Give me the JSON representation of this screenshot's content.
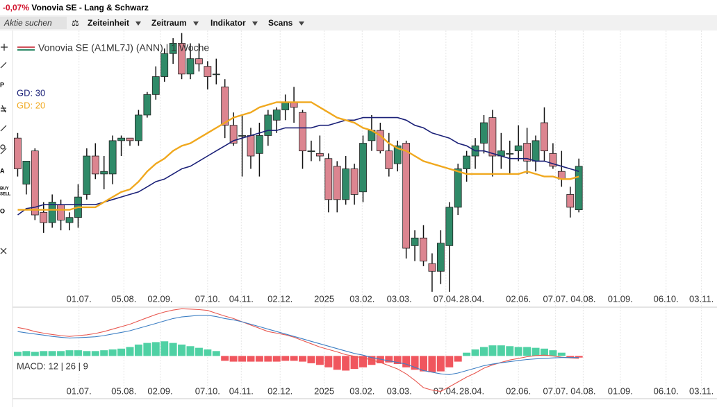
{
  "header": {
    "change": "-0,07%",
    "title": "Vonovia SE - Lang & Schwarz"
  },
  "toolbar": {
    "search": "Aktie suchen",
    "items": [
      "Zeiteinheit",
      "Zeitraum",
      "Indikator",
      "Scans"
    ]
  },
  "tools": {
    "p": "P",
    "a": "A",
    "buy": "BUY",
    "sell": "SELL",
    "o": "O"
  },
  "chart_data": [
    {
      "type": "candlestick",
      "title": "Vonovia SE (A1ML7J) (ANN) | 1 Woche",
      "up_color": "#2f8a68",
      "down_color": "#dc8590",
      "xlim": [
        -0.6,
        81
      ],
      "ylim": [
        22.9,
        33.7
      ],
      "grid": true,
      "xticks": [
        {
          "value": 7.1,
          "label": "01.07."
        },
        {
          "value": 12.3,
          "label": "05.08."
        },
        {
          "value": 16.5,
          "label": "02.09."
        },
        {
          "value": 22,
          "label": "07.10."
        },
        {
          "value": 25.9,
          "label": "04.11."
        },
        {
          "value": 30.4,
          "label": "02.12."
        },
        {
          "value": 35.5,
          "label": "2025"
        },
        {
          "value": 39.9,
          "label": "03.02."
        },
        {
          "value": 44.2,
          "label": "03.03."
        },
        {
          "value": 49.6,
          "label": "07.04."
        },
        {
          "value": 52.6,
          "label": "28.04."
        },
        {
          "value": 58,
          "label": "02.06."
        },
        {
          "value": 62.3,
          "label": "07.07."
        },
        {
          "value": 65.5,
          "label": "04.08."
        },
        {
          "value": 69.8,
          "label": "01.09."
        },
        {
          "value": 75.1,
          "label": "06.10."
        },
        {
          "value": 79.2,
          "label": "03.11."
        }
      ],
      "open": [
        29.5,
        27.7,
        29.0,
        26.6,
        26.2,
        26.9,
        26.2,
        26.4,
        27.3,
        28.8,
        28.1,
        28.1,
        29.4,
        29.5,
        29.4,
        30.4,
        31.2,
        31.9,
        32.8,
        33.2,
        32.0,
        32.6,
        32.3,
        32.0,
        31.5,
        30.0,
        29.6,
        29.6,
        28.9,
        29.6,
        30.2,
        30.6,
        30.9,
        30.5,
        29.0,
        28.9,
        28.7,
        28.4,
        27.1,
        28.3,
        27.4,
        29.4,
        29.8,
        29.0,
        28.5,
        29.3,
        25.3,
        25.6,
        24.6,
        24.3,
        25.3,
        26.8,
        28.3,
        28.8,
        29.3,
        30.3,
        28.8,
        28.9,
        29.0,
        29.3,
        28.6,
        30.1,
        28.9,
        28.2,
        27.3,
        26.7
      ],
      "high": [
        29.7,
        28.6,
        29.1,
        27.0,
        27.3,
        27.1,
        26.6,
        27.7,
        29.1,
        29.3,
        28.8,
        29.6,
        29.6,
        29.5,
        30.6,
        31.3,
        32.3,
        33.0,
        33.4,
        33.6,
        33.2,
        33.2,
        32.5,
        32.6,
        31.8,
        30.5,
        30.4,
        29.9,
        30.1,
        30.6,
        30.7,
        31.2,
        31.5,
        30.6,
        29.4,
        29.6,
        28.9,
        28.6,
        28.8,
        28.5,
        29.6,
        30.4,
        30.1,
        29.7,
        29.4,
        29.4,
        25.9,
        26.1,
        25.0,
        25.9,
        27.0,
        28.5,
        29.0,
        29.5,
        30.4,
        30.6,
        29.7,
        29.4,
        30.0,
        29.9,
        29.6,
        30.7,
        29.3,
        29.0,
        27.6,
        28.7
      ],
      "low": [
        28.0,
        27.3,
        26.3,
        25.8,
        26.0,
        25.9,
        25.9,
        26.0,
        27.1,
        27.9,
        27.5,
        27.7,
        28.8,
        29.2,
        29.2,
        30.3,
        31.0,
        31.7,
        32.4,
        31.8,
        31.8,
        32.1,
        31.4,
        31.6,
        29.5,
        29.2,
        28.0,
        28.3,
        28.0,
        29.2,
        29.7,
        30.2,
        30.1,
        28.3,
        28.6,
        28.6,
        26.6,
        26.6,
        26.9,
        26.9,
        27.0,
        29.0,
        28.9,
        28.0,
        28.2,
        24.8,
        24.7,
        24.5,
        23.5,
        23.8,
        23.5,
        26.5,
        27.8,
        28.3,
        28.9,
        28.0,
        28.3,
        28.1,
        28.6,
        28.1,
        28.2,
        28.6,
        28.3,
        27.6,
        26.4,
        26.6
      ],
      "close": [
        28.3,
        28.6,
        26.5,
        26.2,
        27.0,
        26.3,
        26.4,
        27.2,
        28.8,
        28.1,
        28.2,
        29.4,
        29.5,
        29.4,
        30.4,
        31.2,
        31.9,
        32.8,
        33.2,
        32.0,
        32.6,
        32.4,
        31.9,
        32.0,
        30.0,
        29.3,
        29.6,
        28.8,
        29.6,
        30.4,
        30.6,
        30.9,
        30.7,
        29.0,
        29.0,
        28.8,
        27.1,
        27.1,
        28.3,
        27.3,
        29.3,
        29.8,
        29.0,
        28.3,
        29.2,
        25.2,
        25.6,
        24.7,
        24.3,
        25.4,
        26.8,
        28.3,
        28.8,
        29.2,
        30.1,
        28.8,
        29.0,
        28.9,
        29.2,
        28.6,
        29.4,
        29.0,
        28.4,
        27.9,
        26.8,
        28.4
      ],
      "series": [
        {
          "name": "GD: 30",
          "color": "#1b2178",
          "values": [
            26.5,
            26.75,
            26.8,
            26.9,
            26.9,
            26.9,
            26.9,
            26.9,
            26.9,
            26.9,
            27.0,
            27.1,
            27.2,
            27.3,
            27.4,
            27.6,
            27.8,
            27.9,
            28.1,
            28.3,
            28.4,
            28.6,
            28.8,
            29.0,
            29.2,
            29.4,
            29.5,
            29.6,
            29.7,
            29.8,
            29.8,
            29.9,
            29.9,
            29.9,
            29.9,
            30.0,
            30.0,
            30.1,
            30.2,
            30.2,
            30.3,
            30.3,
            30.3,
            30.3,
            30.3,
            30.2,
            30.0,
            29.9,
            29.7,
            29.6,
            29.5,
            29.3,
            29.2,
            29.0,
            29.0,
            28.9,
            28.8,
            28.7,
            28.7,
            28.7,
            28.6,
            28.6,
            28.5,
            28.4,
            28.3,
            28.2
          ]
        },
        {
          "name": "GD: 20",
          "color": "#f0a81e",
          "values": [
            26.7,
            26.7,
            26.7,
            26.7,
            26.7,
            26.7,
            26.7,
            26.8,
            26.8,
            26.8,
            27.0,
            27.2,
            27.4,
            27.5,
            27.8,
            28.2,
            28.5,
            28.7,
            29.0,
            29.2,
            29.3,
            29.5,
            29.7,
            29.9,
            30.1,
            30.3,
            30.4,
            30.5,
            30.7,
            30.8,
            30.9,
            30.9,
            30.9,
            30.9,
            30.9,
            30.7,
            30.5,
            30.3,
            30.2,
            30.1,
            29.9,
            29.8,
            29.6,
            29.3,
            29.1,
            29.0,
            28.8,
            28.6,
            28.5,
            28.4,
            28.3,
            28.2,
            28.1,
            28.1,
            28.1,
            28.1,
            28.1,
            28.1,
            28.1,
            28.2,
            28.1,
            28.0,
            28.0,
            27.9,
            27.9,
            28.0
          ]
        }
      ]
    },
    {
      "type": "macd",
      "title": "MACD: 12 | 26 | 9",
      "xlim": [
        -0.6,
        81
      ],
      "ylim": [
        -2.5,
        3.0
      ],
      "up_color": "#4fd1a4",
      "down_color": "#f0565e",
      "histogram": [
        0.25,
        0.3,
        0.25,
        0.3,
        0.3,
        0.3,
        0.35,
        0.35,
        0.3,
        0.3,
        0.35,
        0.4,
        0.45,
        0.55,
        0.7,
        0.8,
        0.85,
        0.9,
        0.8,
        0.7,
        0.6,
        0.5,
        0.4,
        0.3,
        -0.3,
        -0.35,
        -0.35,
        -0.35,
        -0.35,
        -0.35,
        -0.35,
        -0.3,
        -0.3,
        -0.35,
        -0.45,
        -0.55,
        -0.7,
        -0.85,
        -0.9,
        -0.8,
        -0.7,
        -0.55,
        -0.45,
        -0.4,
        -0.5,
        -0.7,
        -0.85,
        -0.95,
        -1.0,
        -0.95,
        -0.7,
        -0.35,
        0.2,
        0.4,
        0.55,
        0.65,
        0.65,
        0.6,
        0.55,
        0.55,
        0.5,
        0.45,
        0.35,
        0.2,
        -0.1,
        -0.1
      ],
      "series": [
        {
          "color": "#e8574f",
          "values": [
            1.75,
            1.65,
            1.5,
            1.4,
            1.32,
            1.25,
            1.2,
            1.25,
            1.3,
            1.38,
            1.5,
            1.65,
            1.8,
            1.95,
            2.15,
            2.35,
            2.55,
            2.7,
            2.82,
            2.9,
            2.88,
            2.85,
            2.8,
            2.62,
            2.45,
            2.3,
            2.1,
            1.9,
            1.7,
            1.5,
            1.4,
            1.3,
            1.15,
            0.95,
            0.75,
            0.55,
            0.4,
            0.25,
            0.08,
            -0.02,
            -0.12,
            -0.25,
            -0.4,
            -0.6,
            -0.8,
            -1.1,
            -1.5,
            -1.95,
            -2.1,
            -2.18,
            -1.9,
            -1.6,
            -1.3,
            -1.05,
            -0.75,
            -0.55,
            -0.4,
            -0.25,
            -0.15,
            -0.05,
            0.02,
            0.05,
            0.0,
            -0.08,
            -0.12,
            -0.15
          ]
        },
        {
          "color": "#3d7fc4",
          "values": [
            1.5,
            1.42,
            1.35,
            1.28,
            1.2,
            1.15,
            1.1,
            1.12,
            1.15,
            1.18,
            1.25,
            1.35,
            1.45,
            1.55,
            1.7,
            1.85,
            2.0,
            2.15,
            2.3,
            2.4,
            2.45,
            2.5,
            2.5,
            2.42,
            2.3,
            2.22,
            2.1,
            1.95,
            1.8,
            1.65,
            1.5,
            1.35,
            1.2,
            1.05,
            0.9,
            0.75,
            0.6,
            0.45,
            0.3,
            0.15,
            0.05,
            -0.1,
            -0.2,
            -0.3,
            -0.4,
            -0.5,
            -0.7,
            -0.9,
            -1.0,
            -1.1,
            -1.15,
            -1.05,
            -0.9,
            -0.75,
            -0.6,
            -0.5,
            -0.42,
            -0.35,
            -0.28,
            -0.22,
            -0.18,
            -0.15,
            -0.12,
            -0.1,
            -0.1,
            -0.1
          ]
        }
      ]
    }
  ]
}
